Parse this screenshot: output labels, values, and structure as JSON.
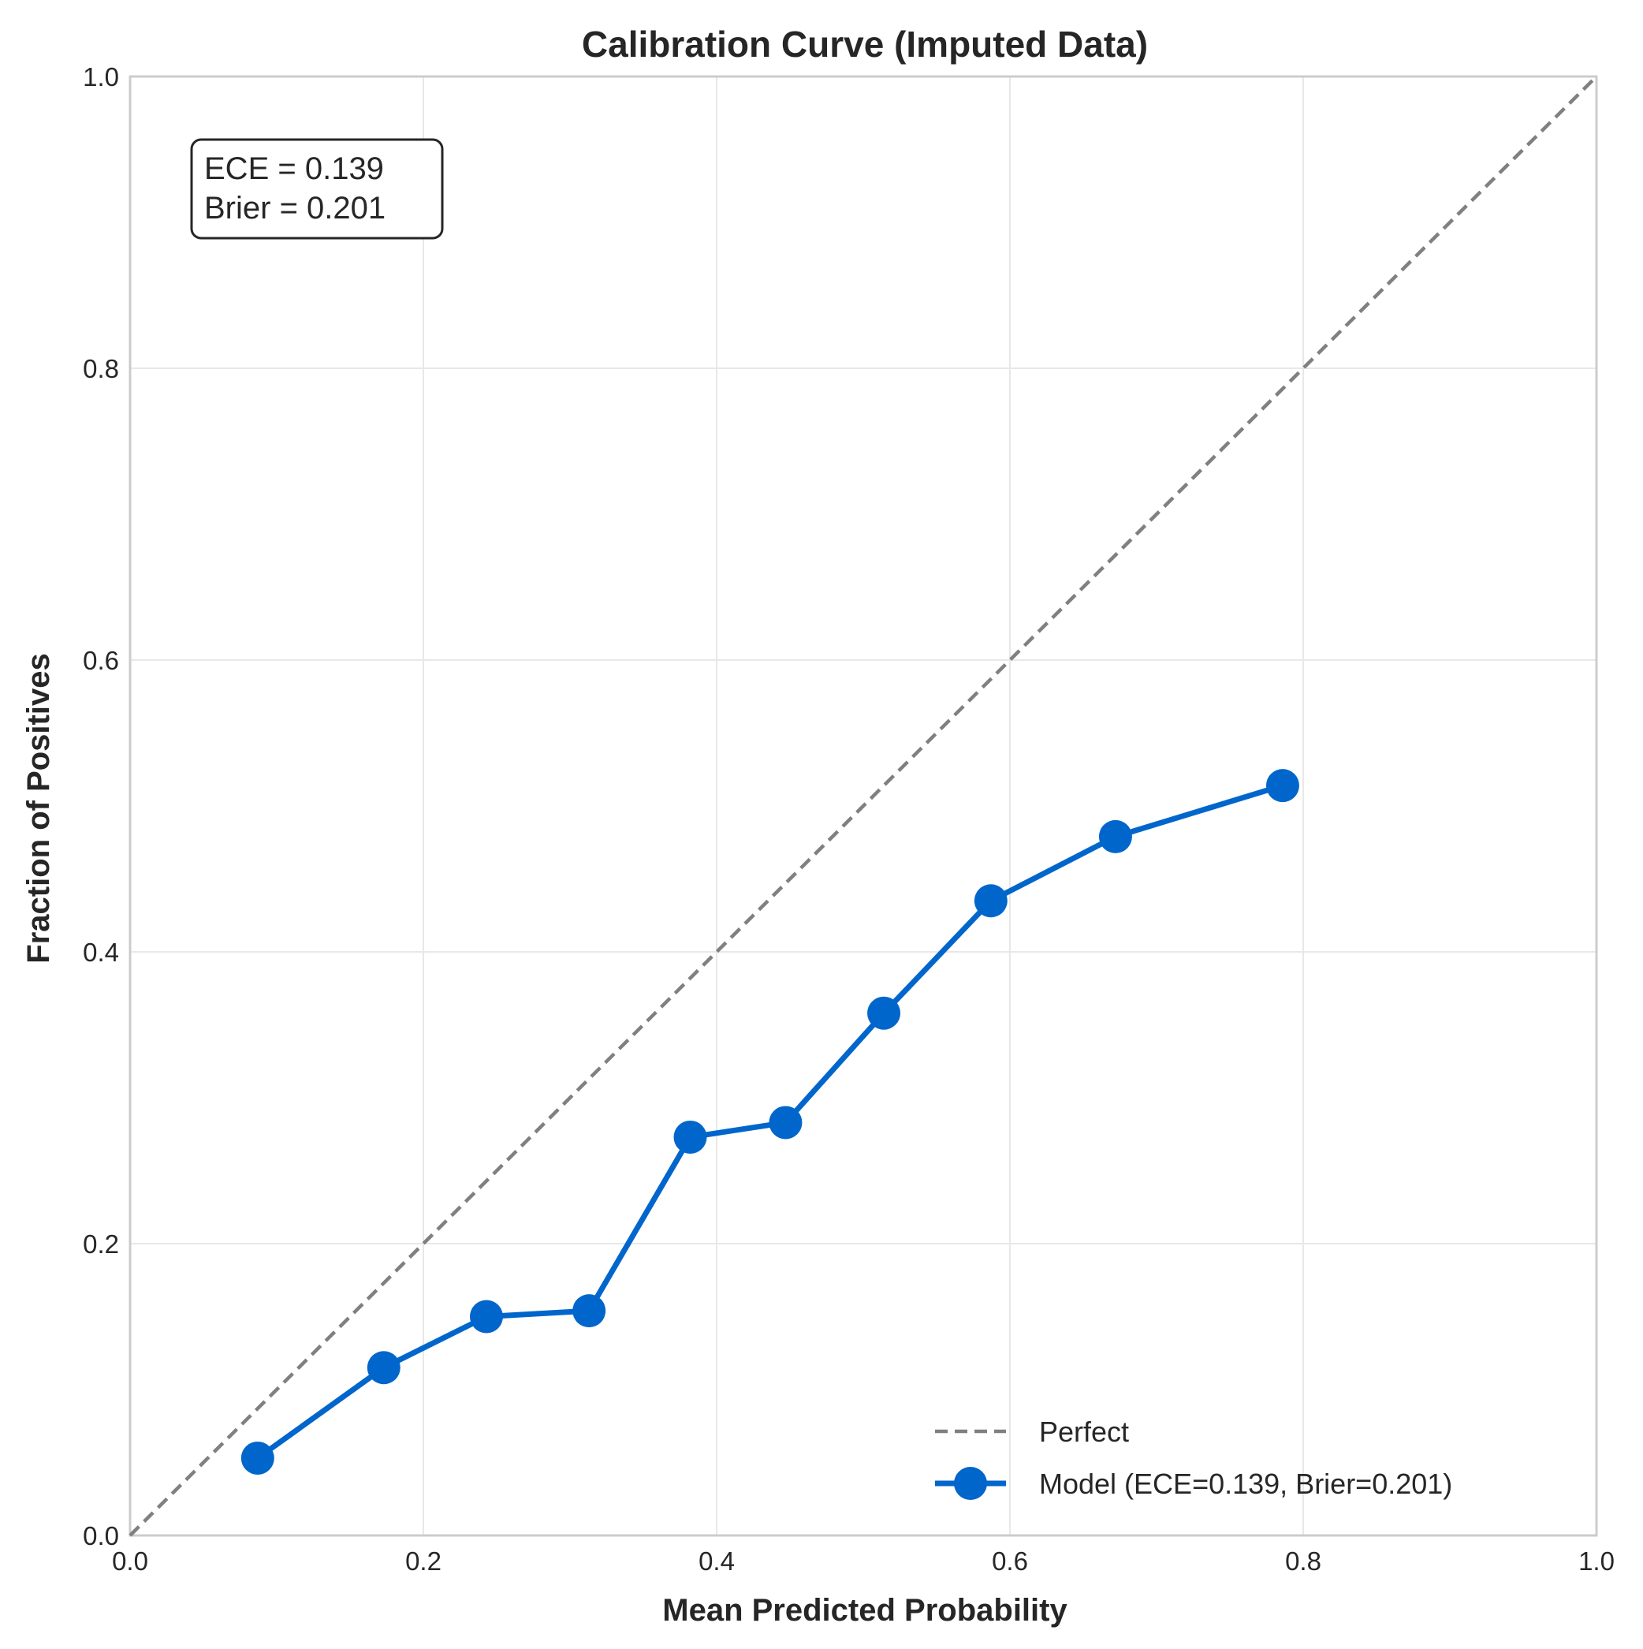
{
  "chart_data": {
    "type": "line",
    "title": "Calibration Curve (Imputed Data)",
    "xlabel": "Mean Predicted Probability",
    "ylabel": "Fraction of Positives",
    "xlim": [
      0.0,
      1.0
    ],
    "ylim": [
      0.0,
      1.0
    ],
    "xticks": [
      "0.0",
      "0.2",
      "0.4",
      "0.6",
      "0.8",
      "1.0"
    ],
    "yticks": [
      "0.0",
      "0.2",
      "0.4",
      "0.6",
      "0.8",
      "1.0"
    ],
    "grid": true,
    "legend_position": "bottom-right",
    "annotation": {
      "lines": [
        "ECE = 0.139",
        "Brier = 0.201"
      ],
      "position": "top-left"
    },
    "series": [
      {
        "name": "Perfect",
        "style": "dashed",
        "color": "#808080",
        "x": [
          0.0,
          1.0
        ],
        "y": [
          0.0,
          1.0
        ]
      },
      {
        "name": "Model (ECE=0.139, Brier=0.201)",
        "style": "solid-markers",
        "color": "#0066cc",
        "x": [
          0.087,
          0.173,
          0.243,
          0.313,
          0.382,
          0.447,
          0.514,
          0.587,
          0.672,
          0.786
        ],
        "y": [
          0.053,
          0.115,
          0.15,
          0.154,
          0.273,
          0.283,
          0.358,
          0.435,
          0.479,
          0.514
        ]
      }
    ]
  }
}
